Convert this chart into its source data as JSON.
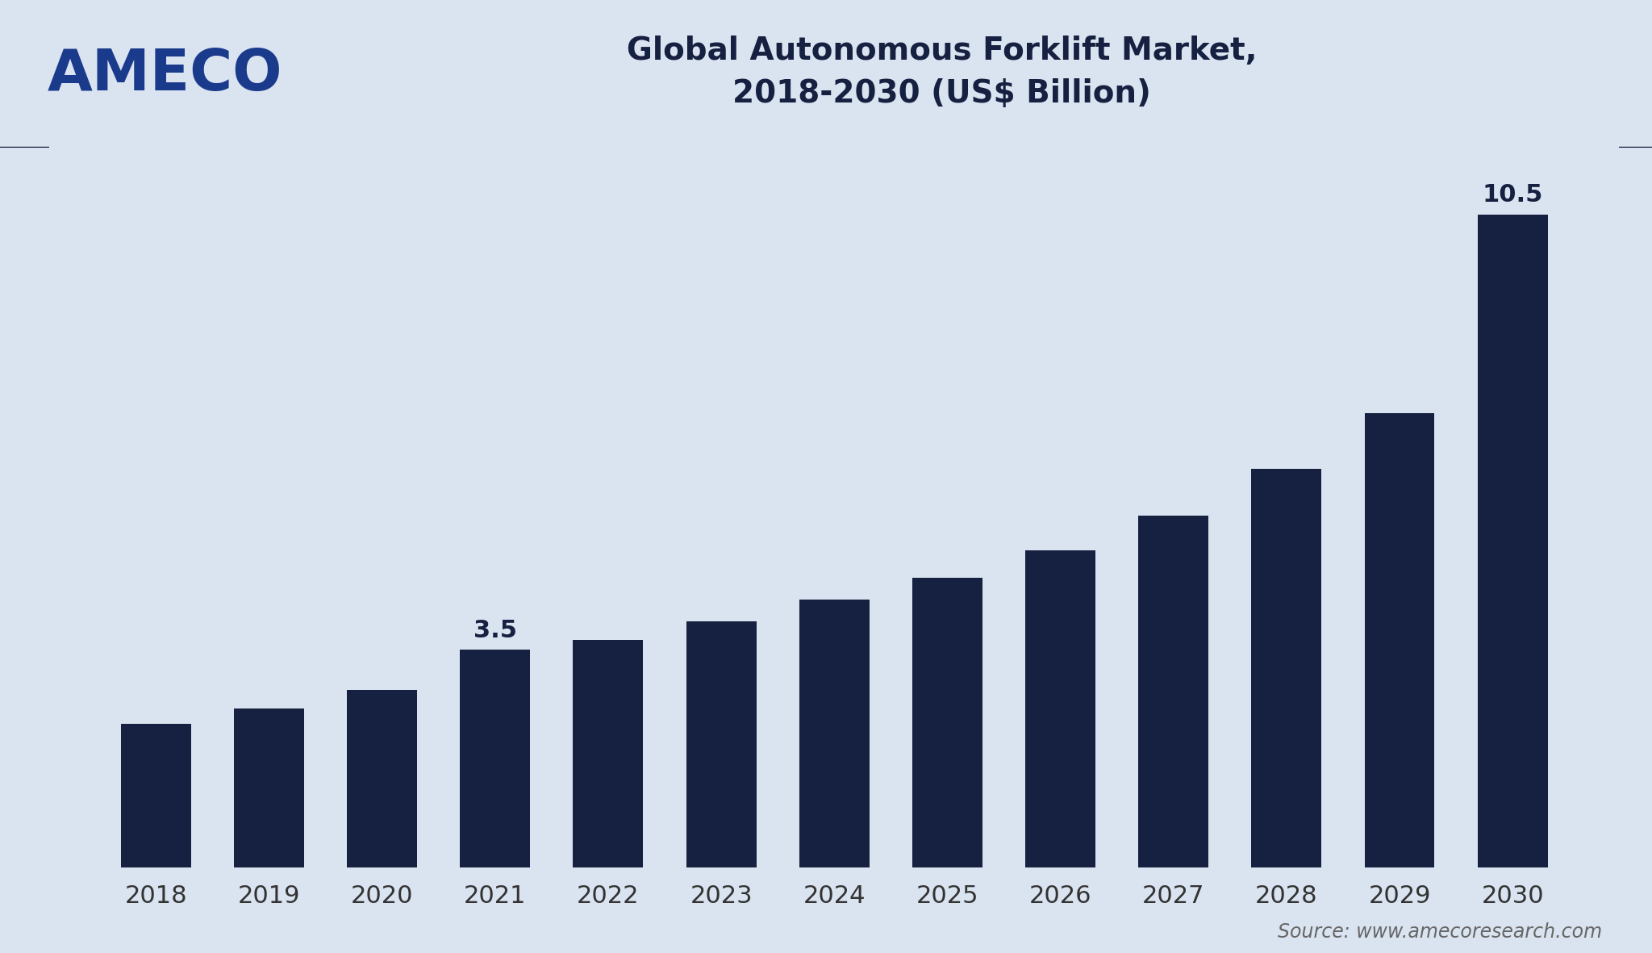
{
  "years": [
    2018,
    2019,
    2020,
    2021,
    2022,
    2023,
    2024,
    2025,
    2026,
    2027,
    2028,
    2029,
    2030
  ],
  "values": [
    2.3,
    2.55,
    2.85,
    3.5,
    3.65,
    3.95,
    4.3,
    4.65,
    5.1,
    5.65,
    6.4,
    7.3,
    10.5
  ],
  "bar_color": "#162040",
  "background_color": "#dae4f0",
  "title_line1": "Global Autonomous Forklift Market,",
  "title_line2": "2018-2030 (US$ Billion)",
  "title_color": "#162040",
  "title_fontsize": 28,
  "logo_text": "AMECO",
  "logo_color": "#1a3a8c",
  "logo_fontsize": 52,
  "source_text": "Source: www.amecoresearch.com",
  "source_color": "#666666",
  "source_fontsize": 17,
  "annotation_2021_text": "3.5",
  "annotation_2030_text": "10.5",
  "annotation_fontsize": 22,
  "annotation_color": "#162040",
  "xlabel_fontsize": 22,
  "xlabel_color": "#333333",
  "ylim": [
    0,
    11.8
  ],
  "header_line_color": "#162040",
  "bar_width": 0.62
}
